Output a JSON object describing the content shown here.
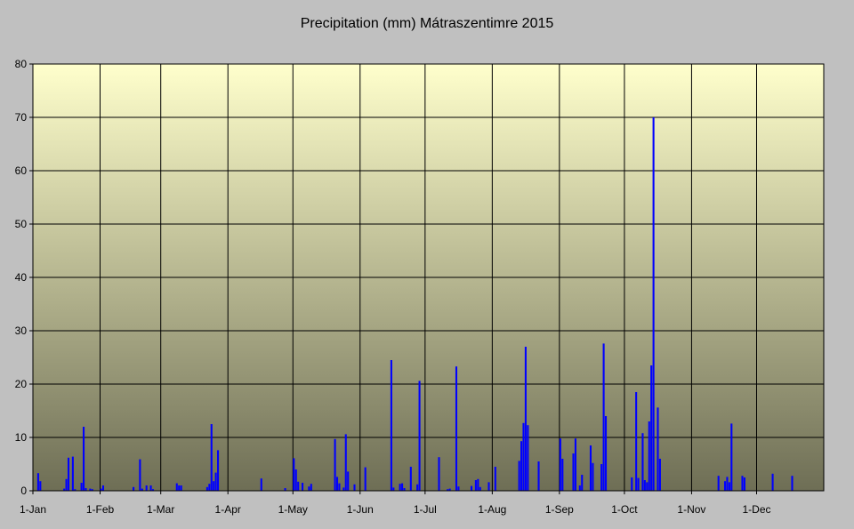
{
  "chart_data": {
    "type": "bar",
    "title": "Precipitation (mm) Mátraszentimre 2015",
    "xlabel": "",
    "ylabel": "",
    "ylim": [
      0,
      80
    ],
    "yticks": [
      0,
      10,
      20,
      30,
      40,
      50,
      60,
      70,
      80
    ],
    "x_range": [
      "2015-01-01",
      "2016-01-01"
    ],
    "x_ticks": [
      {
        "date": "2015-01-01",
        "label": "1-Jan"
      },
      {
        "date": "2015-02-01",
        "label": "1-Feb"
      },
      {
        "date": "2015-03-01",
        "label": "1-Mar"
      },
      {
        "date": "2015-04-01",
        "label": "1-Apr"
      },
      {
        "date": "2015-05-01",
        "label": "1-May"
      },
      {
        "date": "2015-06-01",
        "label": "1-Jun"
      },
      {
        "date": "2015-07-01",
        "label": "1-Jul"
      },
      {
        "date": "2015-08-01",
        "label": "1-Aug"
      },
      {
        "date": "2015-09-01",
        "label": "1-Sep"
      },
      {
        "date": "2015-10-01",
        "label": "1-Oct"
      },
      {
        "date": "2015-11-01",
        "label": "1-Nov"
      },
      {
        "date": "2015-12-01",
        "label": "1-Dec"
      }
    ],
    "grid": true,
    "legend": "none",
    "colors": {
      "bar": "#0000ff",
      "background_top": "#ffffcc",
      "background_bottom": "#6e6e55",
      "page": "#c0c0c0"
    },
    "series": [
      {
        "points": [
          [
            "2015-01-03",
            3.3
          ],
          [
            "2015-01-04",
            1.8
          ],
          [
            "2015-01-15",
            0.4
          ],
          [
            "2015-01-16",
            2.2
          ],
          [
            "2015-01-17",
            6.2
          ],
          [
            "2015-01-19",
            6.4
          ],
          [
            "2015-01-20",
            0.3
          ],
          [
            "2015-01-23",
            1.5
          ],
          [
            "2015-01-24",
            12.0
          ],
          [
            "2015-01-25",
            0.5
          ],
          [
            "2015-01-27",
            0.4
          ],
          [
            "2015-01-28",
            0.3
          ],
          [
            "2015-02-01",
            0.4
          ],
          [
            "2015-02-02",
            1.0
          ],
          [
            "2015-02-16",
            0.7
          ],
          [
            "2015-02-19",
            5.9
          ],
          [
            "2015-02-20",
            0.4
          ],
          [
            "2015-02-22",
            1.0
          ],
          [
            "2015-02-24",
            1.0
          ],
          [
            "2015-02-25",
            0.3
          ],
          [
            "2015-03-08",
            1.4
          ],
          [
            "2015-03-09",
            1.0
          ],
          [
            "2015-03-10",
            1.0
          ],
          [
            "2015-03-22",
            0.7
          ],
          [
            "2015-03-23",
            1.3
          ],
          [
            "2015-03-24",
            12.5
          ],
          [
            "2015-03-25",
            1.8
          ],
          [
            "2015-03-26",
            3.4
          ],
          [
            "2015-03-27",
            7.6
          ],
          [
            "2015-04-16",
            2.3
          ],
          [
            "2015-04-27",
            0.5
          ],
          [
            "2015-05-01",
            6.1
          ],
          [
            "2015-05-02",
            4.0
          ],
          [
            "2015-05-03",
            1.7
          ],
          [
            "2015-05-05",
            1.5
          ],
          [
            "2015-05-08",
            0.8
          ],
          [
            "2015-05-09",
            1.3
          ],
          [
            "2015-05-20",
            9.7
          ],
          [
            "2015-05-21",
            2.6
          ],
          [
            "2015-05-22",
            1.4
          ],
          [
            "2015-05-24",
            0.6
          ],
          [
            "2015-05-25",
            10.6
          ],
          [
            "2015-05-26",
            3.6
          ],
          [
            "2015-05-29",
            1.2
          ],
          [
            "2015-06-03",
            4.4
          ],
          [
            "2015-06-15",
            24.5
          ],
          [
            "2015-06-16",
            0.6
          ],
          [
            "2015-06-19",
            1.3
          ],
          [
            "2015-06-20",
            1.4
          ],
          [
            "2015-06-21",
            0.5
          ],
          [
            "2015-06-24",
            4.5
          ],
          [
            "2015-06-27",
            1.2
          ],
          [
            "2015-06-28",
            20.6
          ],
          [
            "2015-07-07",
            6.3
          ],
          [
            "2015-07-11",
            0.3
          ],
          [
            "2015-07-12",
            0.4
          ],
          [
            "2015-07-15",
            23.3
          ],
          [
            "2015-07-16",
            0.8
          ],
          [
            "2015-07-22",
            0.9
          ],
          [
            "2015-07-24",
            2.0
          ],
          [
            "2015-07-25",
            2.2
          ],
          [
            "2015-07-26",
            0.7
          ],
          [
            "2015-07-30",
            1.6
          ],
          [
            "2015-08-02",
            4.5
          ],
          [
            "2015-08-13",
            5.6
          ],
          [
            "2015-08-14",
            9.3
          ],
          [
            "2015-08-15",
            12.7
          ],
          [
            "2015-08-16",
            27.0
          ],
          [
            "2015-08-17",
            12.3
          ],
          [
            "2015-08-22",
            5.5
          ],
          [
            "2015-09-01",
            9.8
          ],
          [
            "2015-09-02",
            6.0
          ],
          [
            "2015-09-07",
            7.0
          ],
          [
            "2015-09-08",
            9.8
          ],
          [
            "2015-09-10",
            1.0
          ],
          [
            "2015-09-11",
            3.0
          ],
          [
            "2015-09-15",
            8.5
          ],
          [
            "2015-09-16",
            5.2
          ],
          [
            "2015-09-20",
            5.0
          ],
          [
            "2015-09-21",
            27.6
          ],
          [
            "2015-09-22",
            14.0
          ],
          [
            "2015-10-04",
            2.5
          ],
          [
            "2015-10-06",
            18.5
          ],
          [
            "2015-10-07",
            2.4
          ],
          [
            "2015-10-09",
            10.8
          ],
          [
            "2015-10-10",
            2.0
          ],
          [
            "2015-10-11",
            1.6
          ],
          [
            "2015-10-12",
            13.0
          ],
          [
            "2015-10-13",
            23.5
          ],
          [
            "2015-10-14",
            70.0
          ],
          [
            "2015-10-16",
            15.6
          ],
          [
            "2015-10-17",
            6.0
          ],
          [
            "2015-11-13",
            2.8
          ],
          [
            "2015-11-16",
            1.8
          ],
          [
            "2015-11-17",
            2.6
          ],
          [
            "2015-11-18",
            1.6
          ],
          [
            "2015-11-19",
            12.6
          ],
          [
            "2015-11-24",
            2.8
          ],
          [
            "2015-11-25",
            2.5
          ],
          [
            "2015-12-08",
            3.2
          ],
          [
            "2015-12-17",
            2.8
          ]
        ]
      }
    ]
  }
}
